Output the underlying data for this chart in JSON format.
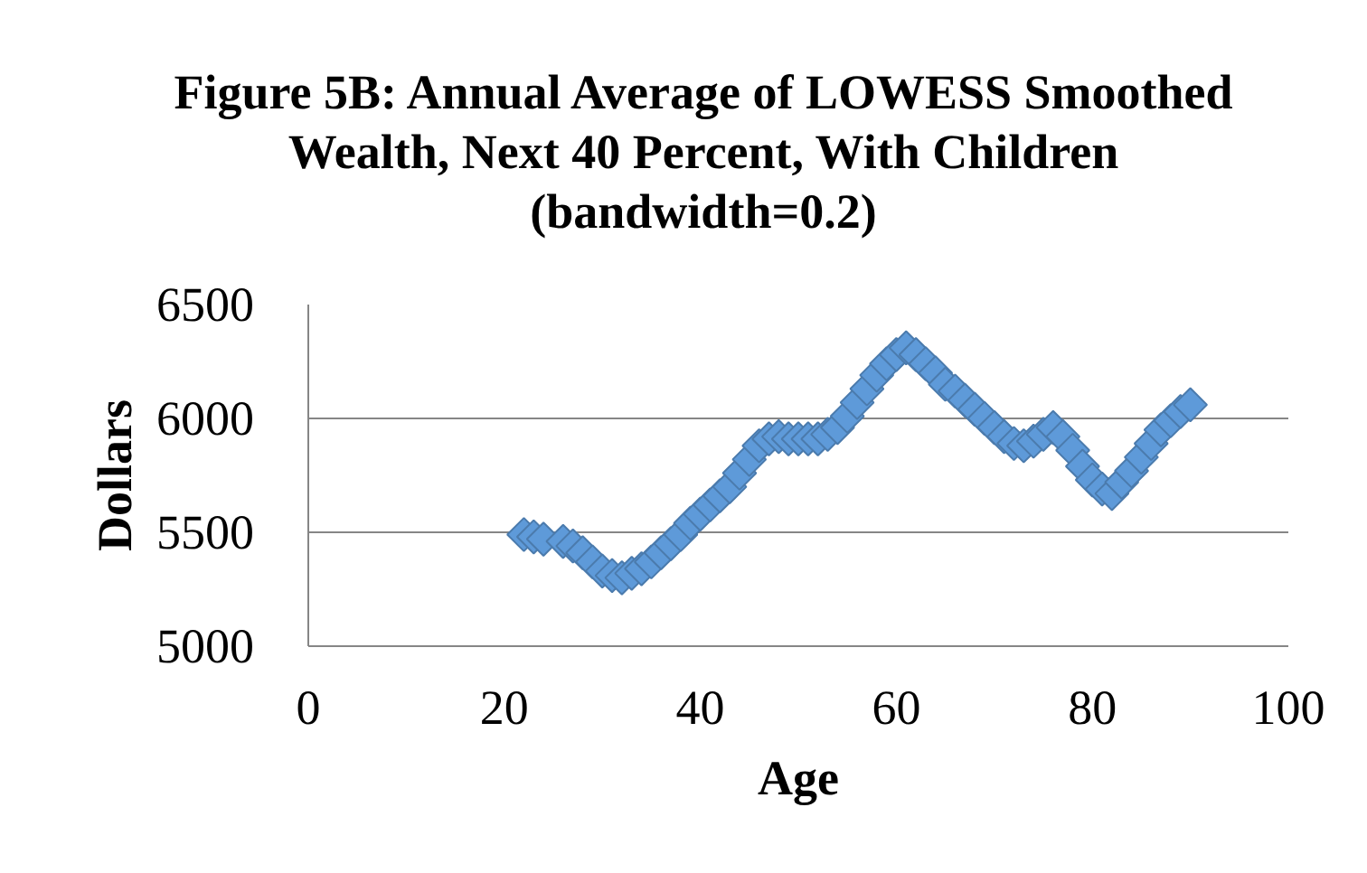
{
  "chart_data": {
    "type": "scatter",
    "title": "Figure 5B: Annual Average of LOWESS Smoothed Wealth, Next 40 Percent, With Children (bandwidth=0.2)",
    "xlabel": "Age",
    "ylabel": "Dollars",
    "x": [
      22,
      23,
      24,
      26,
      27,
      28,
      29,
      30,
      31,
      32,
      33,
      34,
      35,
      36,
      37,
      38,
      39,
      40,
      41,
      42,
      43,
      44,
      45,
      46,
      47,
      48,
      49,
      50,
      51,
      52,
      53,
      54,
      55,
      56,
      57,
      58,
      59,
      60,
      61,
      62,
      63,
      64,
      65,
      66,
      67,
      68,
      69,
      70,
      71,
      72,
      73,
      74,
      75,
      76,
      77,
      78,
      79,
      80,
      81,
      82,
      83,
      84,
      85,
      86,
      87,
      88,
      89,
      90
    ],
    "values": [
      5490,
      5480,
      5470,
      5460,
      5440,
      5410,
      5370,
      5330,
      5310,
      5300,
      5320,
      5340,
      5370,
      5410,
      5450,
      5490,
      5540,
      5580,
      5620,
      5660,
      5700,
      5760,
      5820,
      5880,
      5910,
      5920,
      5910,
      5910,
      5910,
      5910,
      5930,
      5960,
      6010,
      6070,
      6130,
      6190,
      6240,
      6280,
      6310,
      6280,
      6240,
      6200,
      6150,
      6120,
      6080,
      6040,
      6000,
      5960,
      5920,
      5890,
      5880,
      5900,
      5930,
      5960,
      5920,
      5860,
      5790,
      5730,
      5690,
      5670,
      5720,
      5770,
      5830,
      5890,
      5950,
      5990,
      6030,
      6060
    ],
    "color": "#5e9ad9",
    "marker": "diamond",
    "xlim": [
      0,
      100
    ],
    "ylim": [
      5000,
      6500
    ],
    "xticks": [
      0,
      20,
      40,
      60,
      80,
      100
    ],
    "yticks": [
      5000,
      5500,
      6000,
      6500
    ],
    "grid": "y"
  }
}
